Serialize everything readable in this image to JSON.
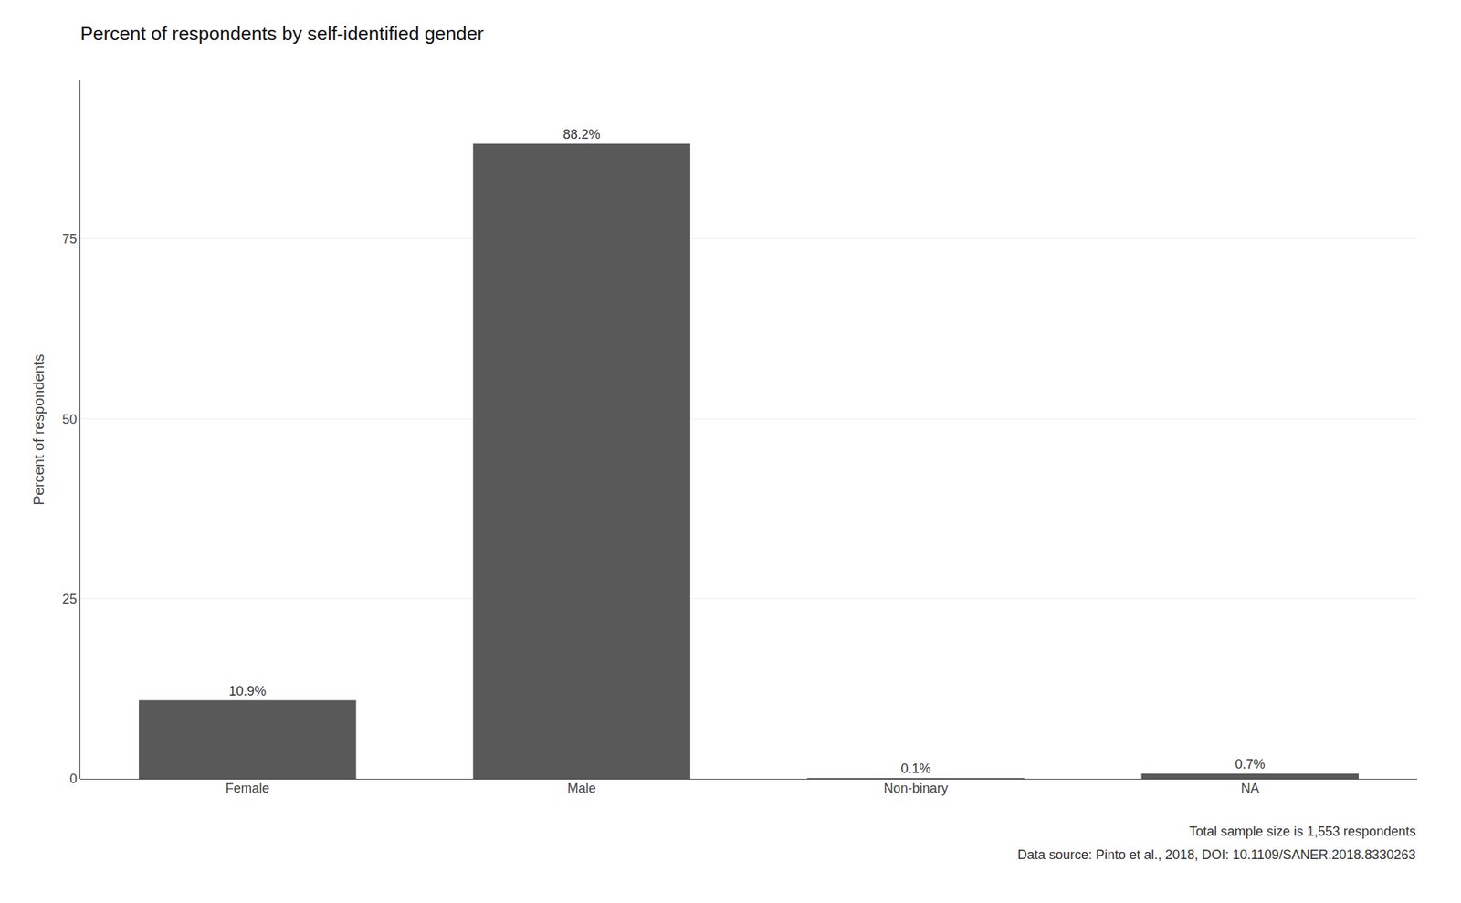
{
  "chart_data": {
    "type": "bar",
    "title": "Percent of respondents by self-identified gender",
    "ylabel": "Percent of respondents",
    "categories": [
      "Female",
      "Male",
      "Non-binary",
      "NA"
    ],
    "values": [
      10.9,
      88.2,
      0.1,
      0.7
    ],
    "value_labels": [
      "10.9%",
      "88.2%",
      "0.1%",
      "0.7%"
    ],
    "data_labels": true,
    "color": "#595959",
    "ylim": [
      0,
      97
    ],
    "yticks": [
      0,
      25,
      50,
      75
    ],
    "grid": true,
    "annotations": [
      "Total sample size is 1,553 respondents",
      "Data source: Pinto et al., 2018, DOI: 10.1109/SANER.2018.8330263"
    ]
  }
}
